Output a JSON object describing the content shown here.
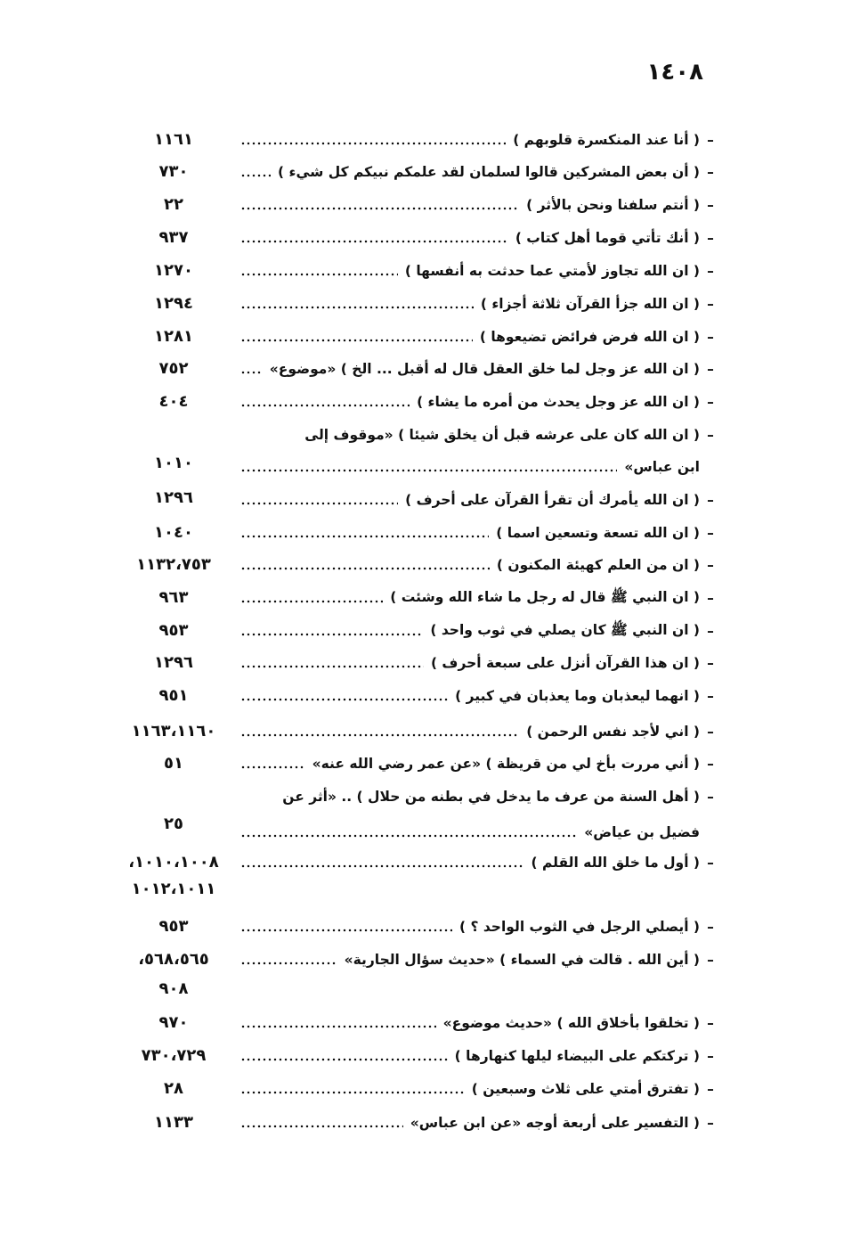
{
  "page_number": "١٤٠٨",
  "dash": "–",
  "entries": [
    {
      "lines": [
        "( أنا عند المنكسرة قلوبهم )"
      ],
      "pages": [
        "١١٦١"
      ]
    },
    {
      "lines": [
        "( أن بعض المشركين قالوا لسلمان لقد علمكم نبيكم كل شيء )"
      ],
      "pages": [
        "٧٣٠"
      ]
    },
    {
      "lines": [
        "( أنتم سلفنا ونحن بالأثر )"
      ],
      "pages": [
        "٢٢"
      ]
    },
    {
      "lines": [
        "( أنك تأتي قوما أهل كتاب )"
      ],
      "pages": [
        "٩٣٧"
      ]
    },
    {
      "lines": [
        "( ان الله تجاوز لأمتي عما حدثت به أنفسها )"
      ],
      "pages": [
        "١٢٧٠"
      ]
    },
    {
      "lines": [
        "( ان الله جزأ القرآن ثلاثة أجزاء )"
      ],
      "pages": [
        "١٢٩٤"
      ]
    },
    {
      "lines": [
        "( ان الله فرض فرائض تضيعوها )"
      ],
      "pages": [
        "١٢٨١"
      ]
    },
    {
      "lines": [
        "( ان الله عز وجل لما خلق العقل قال له أقبل ... الخ ) «موضوع»"
      ],
      "pages": [
        "٧٥٢"
      ]
    },
    {
      "lines": [
        "( ان الله عز وجل يحدث من أمره ما يشاء )"
      ],
      "pages": [
        "٤٠٤"
      ]
    },
    {
      "lines": [
        "( ان الله كان على عرشه قبل أن يخلق شيئا ) «موقوف إلى",
        "ابن عباس»"
      ],
      "pages": [
        "١٠١٠"
      ]
    },
    {
      "lines": [
        "( ان الله يأمرك أن تقرأ القرآن على أحرف )"
      ],
      "pages": [
        "١٢٩٦"
      ]
    },
    {
      "lines": [
        "( ان الله تسعة وتسعين اسما )"
      ],
      "pages": [
        "١٠٤٠"
      ]
    },
    {
      "lines": [
        "( ان من العلم كهيئة المكنون )"
      ],
      "pages": [
        "١١٣٢،٧٥٣"
      ]
    },
    {
      "lines": [
        "( ان النبي ﷺ قال له رجل ما شاء الله وشئت )"
      ],
      "pages": [
        "٩٦٣"
      ]
    },
    {
      "lines": [
        "( ان النبي ﷺ كان يصلي في ثوب واحد )"
      ],
      "pages": [
        "٩٥٣"
      ]
    },
    {
      "lines": [
        "( ان هذا القرآن أنزل على سبعة أحرف )"
      ],
      "pages": [
        "١٢٩٦"
      ]
    },
    {
      "lines": [
        "( انهما ليعذبان وما يعذبان في كبير )"
      ],
      "pages": [
        "٩٥١"
      ]
    },
    {
      "lines": [
        "( اني لأجد نفس الرحمن )"
      ],
      "pages": [
        "١١٦٣،١١٦٠"
      ]
    },
    {
      "lines": [
        "( أني مررت بأخ لي من قريظة ) «عن عمر رضي الله عنه»"
      ],
      "pages": [
        "٥١"
      ]
    },
    {
      "lines": [
        "( أهل السنة من عرف ما يدخل في بطنه من حلال ) .. «أثر عن",
        "فضيل بن عياض»"
      ],
      "pages": [
        "٢٥"
      ]
    },
    {
      "lines": [
        "( أول ما خلق الله القلم )"
      ],
      "pages": [
        "،١٠١٠،١٠٠٨",
        "١٠١٢،١٠١١"
      ]
    },
    {
      "lines": [
        "( أيصلي الرجل في الثوب الواحد ؟ )"
      ],
      "pages": [
        "٩٥٣"
      ]
    },
    {
      "lines": [
        "( أين الله . قالت في السماء ) «حديث سؤال الجارية»"
      ],
      "pages": [
        "،٥٦٨،٥٦٥",
        "٩٠٨"
      ]
    },
    {
      "lines": [
        "( تخلقوا بأخلاق الله ) «حديث موضوع»"
      ],
      "pages": [
        "٩٧٠"
      ]
    },
    {
      "lines": [
        "( تركتكم على البيضاء ليلها كنهارها )"
      ],
      "pages": [
        "٧٣٠،٧٢٩"
      ]
    },
    {
      "lines": [
        "( تفترق أمتي على ثلاث وسبعين )"
      ],
      "pages": [
        "٢٨"
      ]
    },
    {
      "lines": [
        "( التفسير على أربعة أوجه «عن ابن عباس»"
      ],
      "pages": [
        "١١٣٣"
      ]
    }
  ]
}
